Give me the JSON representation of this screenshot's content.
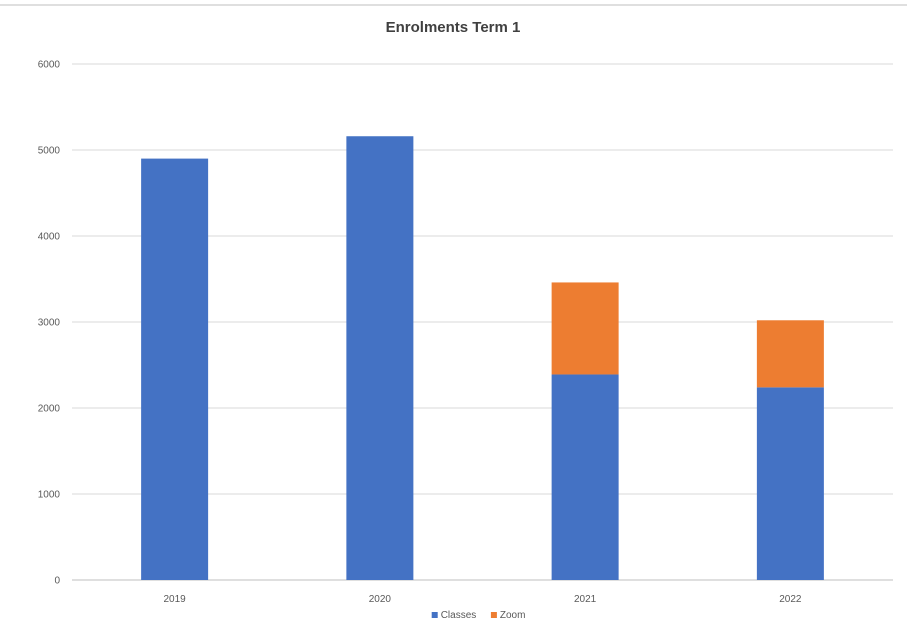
{
  "chart_data": {
    "type": "bar",
    "stacked": true,
    "title": "Enrolments Term 1",
    "xlabel": "",
    "ylabel": "",
    "categories": [
      "2019",
      "2020",
      "2021",
      "2022"
    ],
    "series": [
      {
        "name": "Classes",
        "color": "#4472C4",
        "values": [
          4900,
          5160,
          2390,
          2240
        ]
      },
      {
        "name": "Zoom",
        "color": "#ED7D31",
        "values": [
          0,
          0,
          1070,
          780
        ]
      }
    ],
    "ylim": [
      0,
      6000
    ],
    "yticks": [
      0,
      1000,
      2000,
      3000,
      4000,
      5000,
      6000
    ],
    "grid": true,
    "legend_position": "bottom"
  }
}
